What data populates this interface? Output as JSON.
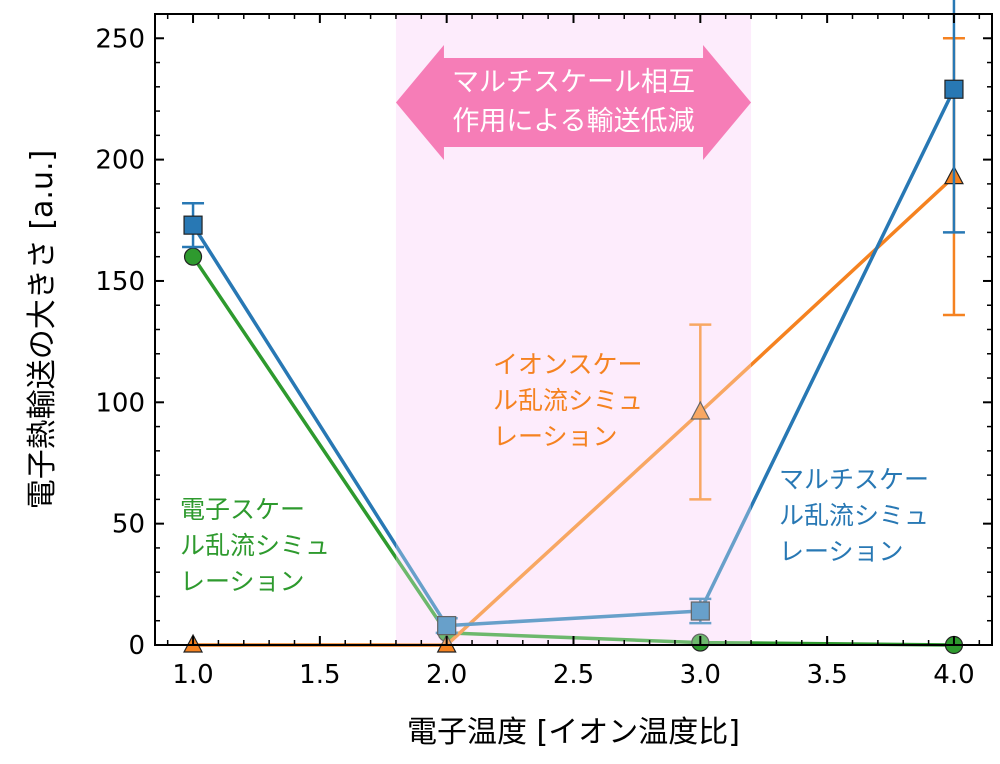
{
  "chart_data": {
    "type": "line",
    "xlabel": "電子温度 [イオン温度比]",
    "ylabel": "電子熱輸送の大きさ [a.u.]",
    "xlim": [
      0.85,
      4.15
    ],
    "ylim": [
      0,
      260
    ],
    "x_ticks": [
      "1.0",
      "1.5",
      "2.0",
      "2.5",
      "3.0",
      "3.5",
      "4.0"
    ],
    "y_ticks": [
      "0",
      "50",
      "100",
      "150",
      "200",
      "250"
    ],
    "grid": false,
    "highlight_region": {
      "x_range": [
        1.8,
        3.2
      ],
      "color": "#fce4fb"
    },
    "banner": {
      "lines": [
        "マルチスケール相互",
        "作用による輸送低減"
      ],
      "color": "#f0308a"
    },
    "series": [
      {
        "key": "multi",
        "color": "#2878b4",
        "marker": "square",
        "x": [
          1.0,
          2.0,
          3.0,
          4.0
        ],
        "y": [
          173,
          8,
          14,
          229
        ],
        "err": [
          9,
          3,
          5,
          59
        ],
        "label_lines": [
          "マルチスケー",
          "ル乱流シミュ",
          "レーション"
        ]
      },
      {
        "key": "ion",
        "color": "#f58220",
        "marker": "triangle",
        "x": [
          1.0,
          2.0,
          3.0,
          4.0
        ],
        "y": [
          0,
          0,
          96,
          193
        ],
        "err": [
          0,
          0,
          36,
          57
        ],
        "label_lines": [
          "イオンスケー",
          "ル乱流シミュ",
          "レーション"
        ]
      },
      {
        "key": "electron",
        "color": "#2e9a2e",
        "marker": "circle",
        "x": [
          1.0,
          2.0,
          3.0,
          4.0
        ],
        "y": [
          160,
          5,
          1,
          0
        ],
        "err": [
          0,
          0,
          0,
          0
        ],
        "label_lines": [
          "電子スケー",
          "ル乱流シミュ",
          "レーション"
        ]
      }
    ]
  }
}
